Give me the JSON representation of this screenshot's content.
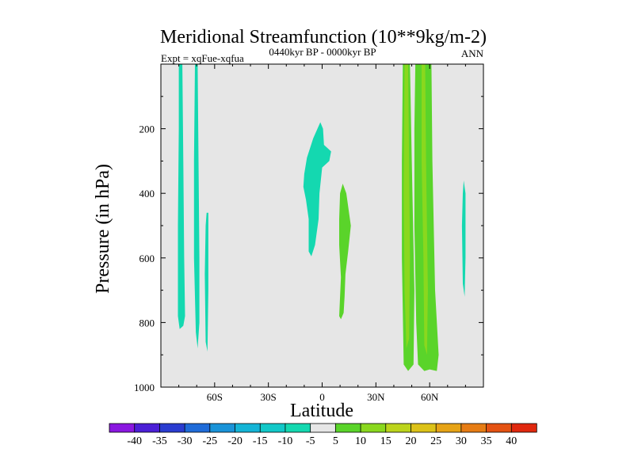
{
  "chart_data": {
    "type": "contour",
    "title": "Meridional Streamfunction (10**9kg/m-2)",
    "experiment_label": "Expt = xqFue-xqfua",
    "subtitle": "0440kyr BP - 0000kyr BP",
    "season": "ANN",
    "xlabel": "Latitude",
    "ylabel": "Pressure (in hPa)",
    "xlim": [
      -90,
      90
    ],
    "ylim": [
      1000,
      0
    ],
    "x_ticks": [
      -60,
      -30,
      0,
      30,
      60
    ],
    "x_tick_labels": [
      "60S",
      "30S",
      "0",
      "30N",
      "60N"
    ],
    "y_ticks": [
      200,
      400,
      600,
      800,
      1000
    ],
    "y_tick_labels": [
      "200",
      "400",
      "600",
      "800",
      "1000"
    ],
    "background_color": "#e6e6e6",
    "colorbar": {
      "labels": [
        "-40",
        "-35",
        "-30",
        "-25",
        "-20",
        "-15",
        "-10",
        "-5",
        "5",
        "10",
        "15",
        "20",
        "25",
        "30",
        "35",
        "40"
      ],
      "colors": [
        "#8a17e0",
        "#4b1fd6",
        "#2a3cd0",
        "#1f6bd8",
        "#1a93d8",
        "#14b4d6",
        "#12c8c8",
        "#14d8b0",
        "#e6e6e6",
        "#5ad42a",
        "#8ad81e",
        "#bcd41c",
        "#dcc218",
        "#e6a316",
        "#e67c14",
        "#e45212",
        "#e0280e"
      ]
    },
    "regions": [
      {
        "name": "neg-band-1",
        "level": -5,
        "color": "#14d8b0",
        "outline": [
          [
            -80,
            0
          ],
          [
            -78,
            0
          ],
          [
            -77.5,
            300
          ],
          [
            -77,
            600
          ],
          [
            -76.5,
            780
          ],
          [
            -77.5,
            810
          ],
          [
            -79.5,
            820
          ],
          [
            -80.5,
            780
          ],
          [
            -80.5,
            500
          ],
          [
            -80,
            200
          ]
        ]
      },
      {
        "name": "neg-band-2",
        "level": -5,
        "color": "#14d8b0",
        "outline": [
          [
            -71,
            0
          ],
          [
            -69.5,
            0
          ],
          [
            -69,
            300
          ],
          [
            -68.5,
            600
          ],
          [
            -68.5,
            800
          ],
          [
            -69.5,
            880
          ],
          [
            -70.5,
            830
          ],
          [
            -71.5,
            600
          ],
          [
            -71.5,
            300
          ]
        ]
      },
      {
        "name": "neg-band-3",
        "level": -5,
        "color": "#14d8b0",
        "outline": [
          [
            -64.5,
            460
          ],
          [
            -63.5,
            460
          ],
          [
            -63.5,
            700
          ],
          [
            -64,
            890
          ],
          [
            -65,
            860
          ],
          [
            -65.5,
            650
          ],
          [
            -65,
            500
          ]
        ]
      },
      {
        "name": "neg-tropical-cell",
        "level": -5,
        "color": "#14d8b0",
        "outline": [
          [
            -10,
            340
          ],
          [
            -8.5,
            290
          ],
          [
            -5,
            230
          ],
          [
            -1,
            180
          ],
          [
            0.5,
            200
          ],
          [
            1,
            250
          ],
          [
            5,
            270
          ],
          [
            4,
            300
          ],
          [
            0,
            320
          ],
          [
            -1.5,
            400
          ],
          [
            -2,
            480
          ],
          [
            -4,
            560
          ],
          [
            -6,
            595
          ],
          [
            -7.5,
            580
          ],
          [
            -7.5,
            480
          ],
          [
            -9,
            420
          ],
          [
            -10.5,
            380
          ]
        ]
      },
      {
        "name": "neg-band-north",
        "level": -5,
        "color": "#14d8b0",
        "outline": [
          [
            79,
            360
          ],
          [
            80,
            400
          ],
          [
            80,
            600
          ],
          [
            79.5,
            720
          ],
          [
            78.5,
            680
          ],
          [
            78,
            500
          ],
          [
            78.5,
            400
          ]
        ]
      },
      {
        "name": "pos-tropical-cell",
        "level": 5,
        "color": "#5ad42a",
        "outline": [
          [
            11.5,
            370
          ],
          [
            13.5,
            400
          ],
          [
            16,
            500
          ],
          [
            14.5,
            580
          ],
          [
            13,
            650
          ],
          [
            12.5,
            720
          ],
          [
            12,
            770
          ],
          [
            10.5,
            790
          ],
          [
            9.5,
            780
          ],
          [
            10,
            720
          ],
          [
            10.5,
            660
          ],
          [
            9.5,
            560
          ],
          [
            9.5,
            480
          ],
          [
            10,
            400
          ]
        ]
      },
      {
        "name": "pos-band-west",
        "level": 5,
        "color": "#5ad42a",
        "outline": [
          [
            45,
            0
          ],
          [
            49,
            0
          ],
          [
            50,
            300
          ],
          [
            51.5,
            700
          ],
          [
            51,
            930
          ],
          [
            48,
            950
          ],
          [
            45.5,
            930
          ],
          [
            44.5,
            600
          ],
          [
            44.5,
            300
          ]
        ]
      },
      {
        "name": "pos-band-east",
        "level": 5,
        "color": "#5ad42a",
        "outline": [
          [
            52,
            0
          ],
          [
            61,
            0
          ],
          [
            61.5,
            300
          ],
          [
            63,
            700
          ],
          [
            65,
            900
          ],
          [
            64,
            950
          ],
          [
            60,
            945
          ],
          [
            57,
            950
          ],
          [
            53.5,
            930
          ],
          [
            52.5,
            800
          ],
          [
            51.5,
            500
          ],
          [
            51.5,
            200
          ]
        ]
      },
      {
        "name": "pos-core-west",
        "level": 10,
        "color": "#8ad81e",
        "outline": [
          [
            46,
            0
          ],
          [
            48,
            0
          ],
          [
            48.5,
            300
          ],
          [
            49,
            600
          ],
          [
            48.5,
            850
          ],
          [
            47,
            880
          ],
          [
            46,
            700
          ],
          [
            45.5,
            400
          ]
        ]
      },
      {
        "name": "pos-core-east",
        "level": 10,
        "color": "#8ad81e",
        "outline": [
          [
            55.5,
            0
          ],
          [
            57.5,
            0
          ],
          [
            58,
            300
          ],
          [
            59,
            700
          ],
          [
            58.5,
            900
          ],
          [
            57,
            870
          ],
          [
            56.5,
            600
          ],
          [
            55.5,
            300
          ]
        ]
      }
    ]
  }
}
